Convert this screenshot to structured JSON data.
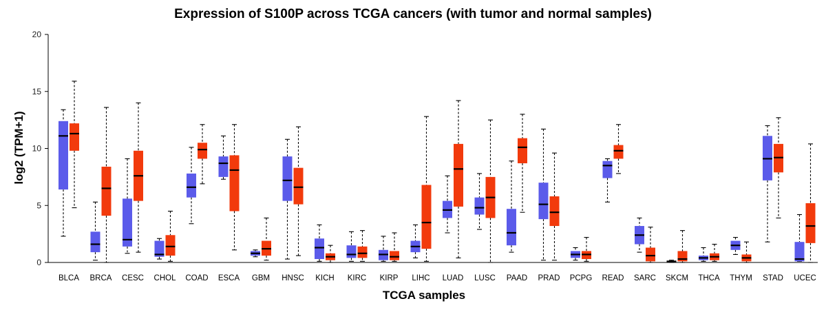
{
  "chart_data": {
    "type": "boxplot",
    "title": "Expression of S100P across TCGA cancers (with tumor and normal samples)",
    "xlabel": "TCGA samples",
    "ylabel": "log2 (TPM+1)",
    "ylim": [
      0,
      20
    ],
    "yticks": [
      0,
      5,
      10,
      15,
      20
    ],
    "grid": false,
    "legend": "none",
    "colors": {
      "normal": "#5b5bea",
      "tumor": "#f23a0c",
      "median": "#000000"
    },
    "categories": [
      "BLCA",
      "BRCA",
      "CESC",
      "CHOL",
      "COAD",
      "ESCA",
      "GBM",
      "HNSC",
      "KICH",
      "KIRC",
      "KIRP",
      "LIHC",
      "LUAD",
      "LUSC",
      "PAAD",
      "PRAD",
      "PCPG",
      "READ",
      "SARC",
      "SKCM",
      "THCA",
      "THYM",
      "STAD",
      "UCEC"
    ],
    "series": [
      {
        "key": "normal",
        "values": [
          {
            "min": 2.3,
            "q1": 6.4,
            "median": 11.1,
            "q3": 12.4,
            "max": 13.4
          },
          {
            "min": 0.2,
            "q1": 0.9,
            "median": 1.6,
            "q3": 2.7,
            "max": 5.3
          },
          {
            "min": 0.8,
            "q1": 1.4,
            "median": 2.0,
            "q3": 5.6,
            "max": 9.1
          },
          {
            "min": 0.3,
            "q1": 0.5,
            "median": 0.7,
            "q3": 1.9,
            "max": 2.1
          },
          {
            "min": 3.4,
            "q1": 5.7,
            "median": 6.6,
            "q3": 7.8,
            "max": 10.1
          },
          {
            "min": 7.3,
            "q1": 7.5,
            "median": 8.7,
            "q3": 9.3,
            "max": 11.1
          },
          {
            "min": 0.5,
            "q1": 0.6,
            "median": 0.8,
            "q3": 1.0,
            "max": 1.1
          },
          {
            "min": 0.3,
            "q1": 5.4,
            "median": 7.2,
            "q3": 9.3,
            "max": 10.8
          },
          {
            "min": 0.1,
            "q1": 0.3,
            "median": 1.3,
            "q3": 2.1,
            "max": 3.3
          },
          {
            "min": 0.1,
            "q1": 0.4,
            "median": 0.7,
            "q3": 1.5,
            "max": 2.7
          },
          {
            "min": 0.1,
            "q1": 0.2,
            "median": 0.7,
            "q3": 1.1,
            "max": 2.3
          },
          {
            "min": 0.4,
            "q1": 0.9,
            "median": 1.4,
            "q3": 1.9,
            "max": 3.3
          },
          {
            "min": 2.6,
            "q1": 3.9,
            "median": 4.6,
            "q3": 5.4,
            "max": 7.6
          },
          {
            "min": 2.9,
            "q1": 4.2,
            "median": 4.8,
            "q3": 5.7,
            "max": 7.8
          },
          {
            "min": 0.9,
            "q1": 1.5,
            "median": 2.6,
            "q3": 4.7,
            "max": 8.9
          },
          {
            "min": 0.2,
            "q1": 3.8,
            "median": 5.1,
            "q3": 7.0,
            "max": 11.7
          },
          {
            "min": 0.2,
            "q1": 0.4,
            "median": 0.7,
            "q3": 1.0,
            "max": 1.3
          },
          {
            "min": 5.3,
            "q1": 7.4,
            "median": 8.5,
            "q3": 8.9,
            "max": 9.1
          },
          {
            "min": 0.9,
            "q1": 1.6,
            "median": 2.4,
            "q3": 3.2,
            "max": 3.9
          },
          {
            "min": 0.0,
            "q1": 0.05,
            "median": 0.1,
            "q3": 0.15,
            "max": 0.2
          },
          {
            "min": 0.1,
            "q1": 0.2,
            "median": 0.4,
            "q3": 0.6,
            "max": 1.3
          },
          {
            "min": 0.7,
            "q1": 1.1,
            "median": 1.5,
            "q3": 1.9,
            "max": 2.2
          },
          {
            "min": 1.8,
            "q1": 7.2,
            "median": 9.1,
            "q3": 11.1,
            "max": 12.0
          },
          {
            "min": 0.1,
            "q1": 0.1,
            "median": 0.3,
            "q3": 1.8,
            "max": 4.2
          }
        ]
      },
      {
        "key": "tumor",
        "values": [
          {
            "min": 4.8,
            "q1": 9.8,
            "median": 11.3,
            "q3": 12.2,
            "max": 15.9
          },
          {
            "min": 0.0,
            "q1": 4.1,
            "median": 6.5,
            "q3": 8.4,
            "max": 13.6
          },
          {
            "min": 0.9,
            "q1": 5.4,
            "median": 7.6,
            "q3": 9.8,
            "max": 14.0
          },
          {
            "min": 0.1,
            "q1": 0.6,
            "median": 1.4,
            "q3": 2.4,
            "max": 4.5
          },
          {
            "min": 6.9,
            "q1": 9.1,
            "median": 9.9,
            "q3": 10.5,
            "max": 12.1
          },
          {
            "min": 1.1,
            "q1": 4.5,
            "median": 8.1,
            "q3": 9.4,
            "max": 12.1
          },
          {
            "min": 0.2,
            "q1": 0.6,
            "median": 1.2,
            "q3": 1.9,
            "max": 3.9
          },
          {
            "min": 0.6,
            "q1": 5.1,
            "median": 6.6,
            "q3": 8.3,
            "max": 11.9
          },
          {
            "min": 0.0,
            "q1": 0.2,
            "median": 0.5,
            "q3": 0.8,
            "max": 1.5
          },
          {
            "min": 0.1,
            "q1": 0.4,
            "median": 0.8,
            "q3": 1.4,
            "max": 2.8
          },
          {
            "min": 0.1,
            "q1": 0.2,
            "median": 0.5,
            "q3": 1.0,
            "max": 2.6
          },
          {
            "min": 0.1,
            "q1": 1.2,
            "median": 3.5,
            "q3": 6.8,
            "max": 12.8
          },
          {
            "min": 0.4,
            "q1": 4.9,
            "median": 8.2,
            "q3": 10.4,
            "max": 14.2
          },
          {
            "min": 0.0,
            "q1": 3.9,
            "median": 5.7,
            "q3": 7.5,
            "max": 12.5
          },
          {
            "min": 4.4,
            "q1": 8.7,
            "median": 10.1,
            "q3": 10.9,
            "max": 13.0
          },
          {
            "min": 0.2,
            "q1": 3.2,
            "median": 4.4,
            "q3": 5.8,
            "max": 9.6
          },
          {
            "min": 0.1,
            "q1": 0.3,
            "median": 0.7,
            "q3": 1.0,
            "max": 2.2
          },
          {
            "min": 7.8,
            "q1": 9.1,
            "median": 9.8,
            "q3": 10.3,
            "max": 12.1
          },
          {
            "min": 0.0,
            "q1": 0.1,
            "median": 0.6,
            "q3": 1.3,
            "max": 3.1
          },
          {
            "min": 0.0,
            "q1": 0.1,
            "median": 0.3,
            "q3": 1.0,
            "max": 2.8
          },
          {
            "min": 0.1,
            "q1": 0.2,
            "median": 0.5,
            "q3": 0.8,
            "max": 1.6
          },
          {
            "min": 0.0,
            "q1": 0.1,
            "median": 0.4,
            "q3": 0.7,
            "max": 1.8
          },
          {
            "min": 3.9,
            "q1": 7.9,
            "median": 9.2,
            "q3": 10.4,
            "max": 12.7
          },
          {
            "min": 0.0,
            "q1": 1.7,
            "median": 3.2,
            "q3": 5.2,
            "max": 10.4
          }
        ]
      }
    ]
  }
}
